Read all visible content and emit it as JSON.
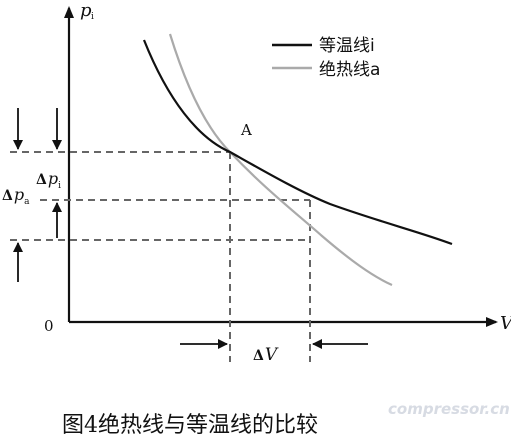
{
  "axes": {
    "y_label": "p",
    "y_label_sub": "i",
    "x_label": "V",
    "origin_label": "0"
  },
  "legend": {
    "isothermal": {
      "label": "等温线i",
      "color": "#111111"
    },
    "adiabatic": {
      "label": "绝热线a",
      "color": "#aaaaaa"
    }
  },
  "point_label": "A",
  "annotations": {
    "delta_pi": {
      "delta": "Δ",
      "var": "p",
      "sub": "i"
    },
    "delta_pa": {
      "delta": "Δ",
      "var": "p",
      "sub": "a"
    },
    "delta_v": {
      "delta": "Δ",
      "var": "V"
    }
  },
  "caption": "图4绝热线与等温线的比较",
  "watermark": "compressor.cn",
  "colors": {
    "dash": "#666666",
    "axis": "#111111"
  },
  "icons": {
    "arrow_down": "arrow-down-icon",
    "arrow_up": "arrow-up-icon",
    "arrow_right": "arrow-right-icon",
    "arrow_left": "arrow-left-icon"
  }
}
